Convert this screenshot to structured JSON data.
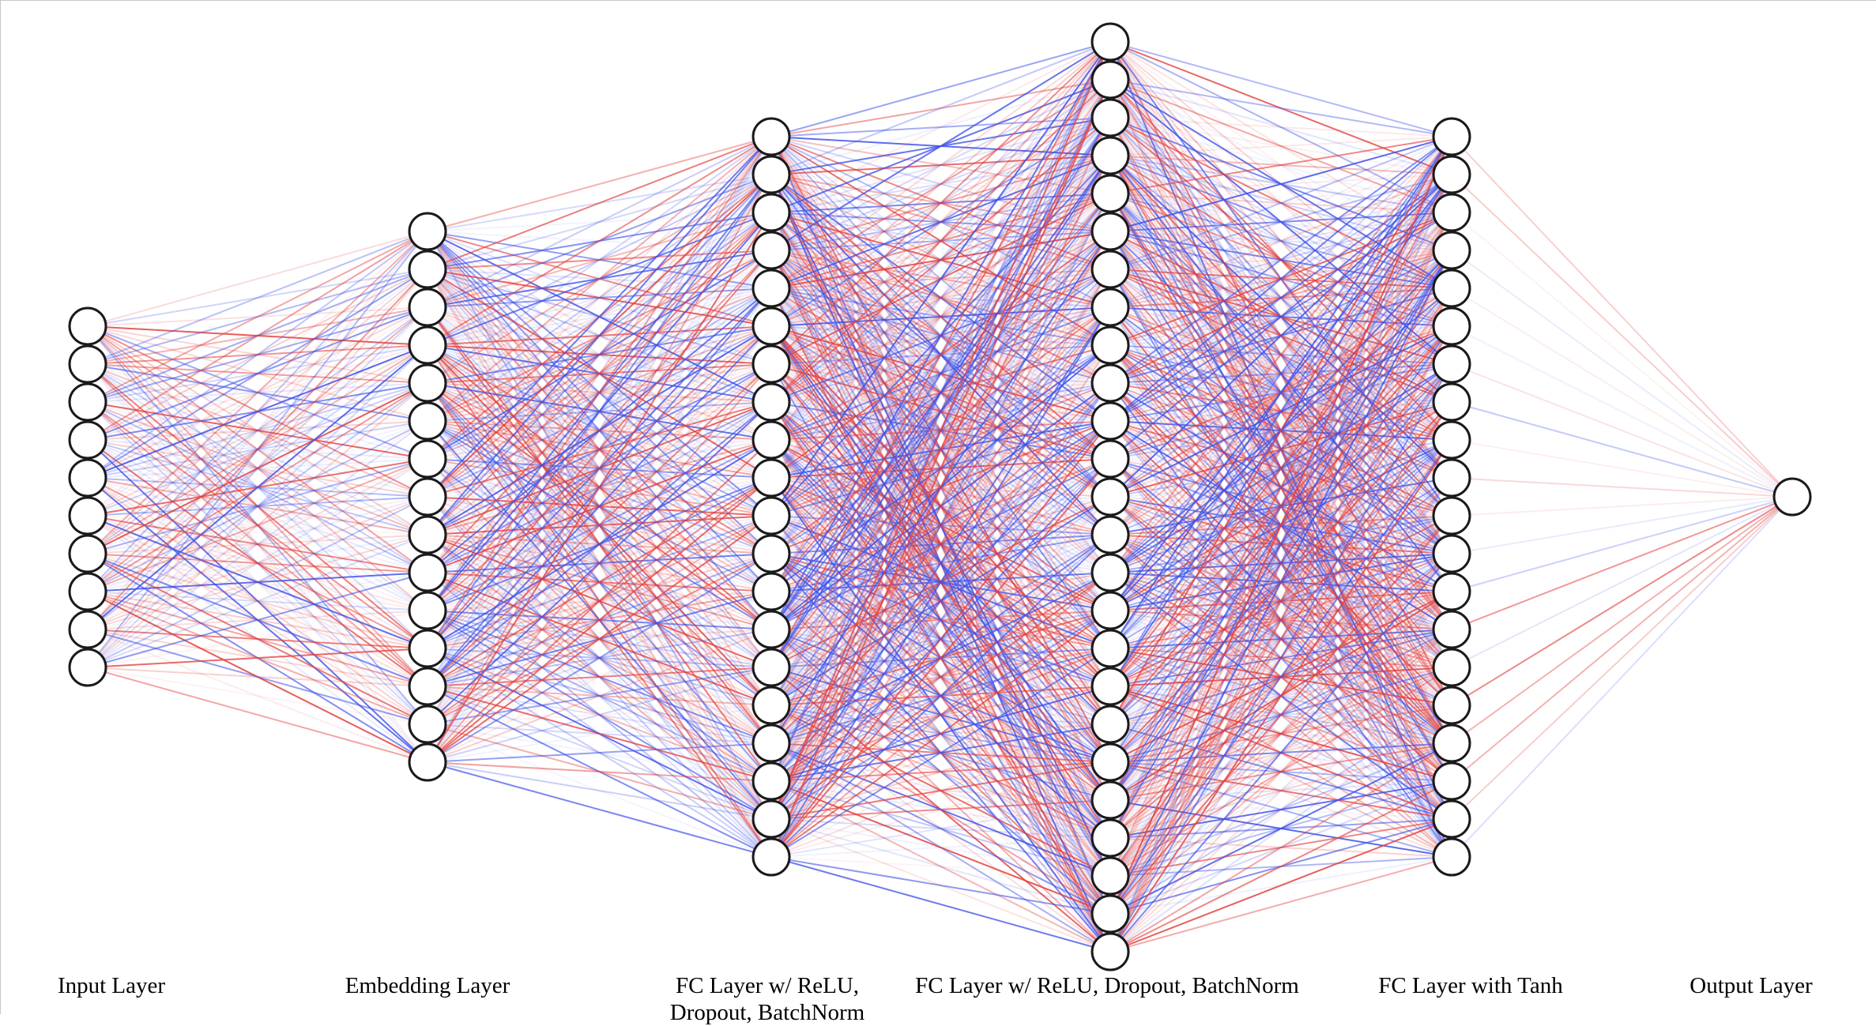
{
  "diagram": {
    "layers": [
      {
        "label": "Input Layer",
        "neurons": 10
      },
      {
        "label": "Embedding Layer",
        "neurons": 15
      },
      {
        "label": "FC Layer w/ ReLU,\nDropout, BatchNorm",
        "neurons": 20
      },
      {
        "label": "FC Layer w/ ReLU, Dropout, BatchNorm",
        "neurons": 25
      },
      {
        "label": "FC Layer with Tanh",
        "neurons": 20
      },
      {
        "label": "Output Layer",
        "neurons": 1
      }
    ],
    "edge_colors": {
      "positive": "#e2413f",
      "negative": "#3f52e8"
    },
    "node_fill": "#ffffff",
    "node_stroke": "#1a1a1a"
  }
}
